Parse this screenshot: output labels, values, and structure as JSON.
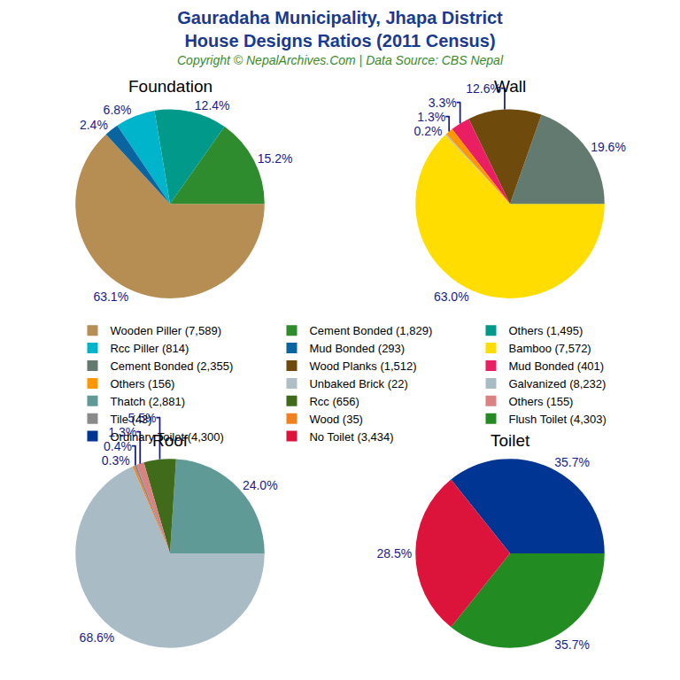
{
  "title": [
    "Gauradaha Municipality, Jhapa District",
    "House Designs Ratios (2011 Census)"
  ],
  "subtitle": "Copyright © NepalArchives.Com | Data Source: CBS Nepal",
  "legend": "center",
  "chart_data": [
    {
      "type": "pie",
      "title": "Foundation",
      "data_labels": true,
      "categories": [
        "Wooden Piller (7,589)",
        "Cement Bonded (1,829)",
        "Others (1,495)",
        "Rcc Piller (814)",
        "Mud Bonded (293)"
      ],
      "values": [
        63.1,
        15.2,
        12.4,
        6.8,
        2.4
      ],
      "value_labels": [
        "63.1%",
        "15.2%",
        "12.4%",
        "6.8%",
        "2.4%"
      ],
      "colors": [
        "#b68d52",
        "#2e8b2e",
        "#00998a",
        "#00b4cc",
        "#0a64a0"
      ]
    },
    {
      "type": "pie",
      "title": "Wall",
      "data_labels": true,
      "categories": [
        "Bamboo (7,572)",
        "Cement Bonded (2,355)",
        "Wood Planks (1,512)",
        "Mud Bonded (401)",
        "Others (156)",
        "Unbaked Brick (22)"
      ],
      "values": [
        63.0,
        19.6,
        12.6,
        3.3,
        1.3,
        0.2
      ],
      "value_labels": [
        "63.0%",
        "19.6%",
        "12.6%",
        "3.3%",
        "1.3%",
        "0.2%"
      ],
      "colors": [
        "#ffdd00",
        "#627a70",
        "#6e4a0c",
        "#e91e63",
        "#ff9800",
        "#b0bec5"
      ]
    },
    {
      "type": "pie",
      "title": "Roof",
      "data_labels": true,
      "categories": [
        "Galvanized (8,232)",
        "Thatch (2,881)",
        "Rcc (656)",
        "Others (155)",
        "Tile (43)",
        "Wood (35)"
      ],
      "values": [
        68.6,
        24.0,
        5.5,
        1.3,
        0.4,
        0.3
      ],
      "value_labels": [
        "68.6%",
        "24.0%",
        "5.5%",
        "1.3%",
        "0.4%",
        "0.3%"
      ],
      "colors": [
        "#a9bcc6",
        "#5f9a96",
        "#3f6b1a",
        "#d98282",
        "#8a8a8a",
        "#f08020"
      ]
    },
    {
      "type": "pie",
      "title": "Toilet",
      "data_labels": true,
      "categories": [
        "Flush Toilet (4,303)",
        "Ordinary Toilet (4,300)",
        "No Toilet (3,434)"
      ],
      "values": [
        35.7,
        35.7,
        28.5
      ],
      "value_labels": [
        "35.7%",
        "35.7%",
        "28.5%"
      ],
      "colors": [
        "#228b22",
        "#003594",
        "#dc143c"
      ]
    }
  ]
}
